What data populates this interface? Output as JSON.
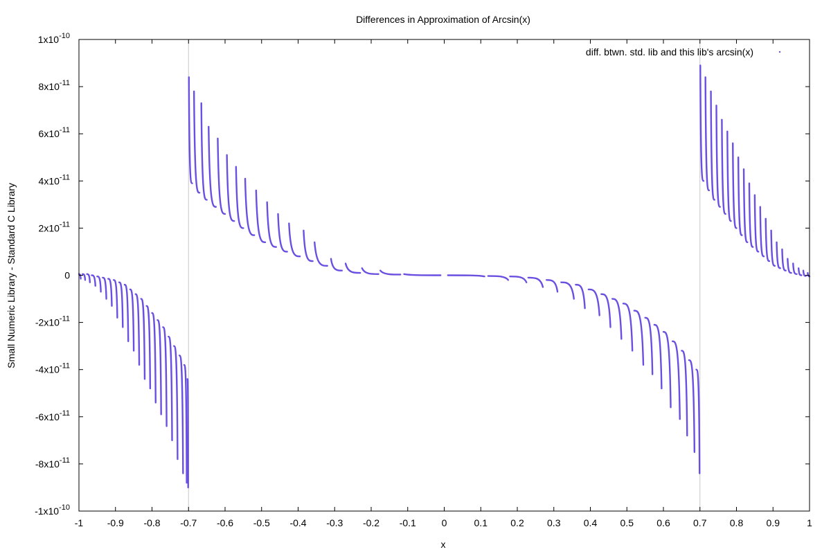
{
  "chart_data": {
    "type": "scatter",
    "title": "Differences in Approximation of Arcsin(x)",
    "xlabel": "x",
    "ylabel": "Small Numeric Library - Standard C Library",
    "xlim": [
      -1,
      1
    ],
    "ylim": [
      -1e-10,
      1e-10
    ],
    "x_ticks": [
      "-1",
      "-0.9",
      "-0.8",
      "-0.7",
      "-0.6",
      "-0.5",
      "-0.4",
      "-0.3",
      "-0.2",
      "-0.1",
      "0",
      "0.1",
      "0.2",
      "0.3",
      "0.4",
      "0.5",
      "0.6",
      "0.7",
      "0.8",
      "0.9",
      "1"
    ],
    "y_ticks": [
      {
        "value": 1e-10,
        "mant": "1",
        "exp": "-10"
      },
      {
        "value": 8e-11,
        "mant": "8",
        "exp": "-11"
      },
      {
        "value": 6e-11,
        "mant": "6",
        "exp": "-11"
      },
      {
        "value": 4e-11,
        "mant": "4",
        "exp": "-11"
      },
      {
        "value": 2e-11,
        "mant": "2",
        "exp": "-11"
      },
      {
        "value": 0,
        "mant": "0",
        "exp": ""
      },
      {
        "value": -2e-11,
        "mant": "-2",
        "exp": "-11"
      },
      {
        "value": -4e-11,
        "mant": "-4",
        "exp": "-11"
      },
      {
        "value": -6e-11,
        "mant": "-6",
        "exp": "-11"
      },
      {
        "value": -8e-11,
        "mant": "-8",
        "exp": "-11"
      },
      {
        "value": -1e-10,
        "mant": "-1",
        "exp": "-10"
      }
    ],
    "vertical_lines": [
      -0.7,
      0.7
    ],
    "grid": false,
    "legend_position": "top-right",
    "series": [
      {
        "name": "diff. btwn. std. lib and this lib's arcsin(x)",
        "color": "#6a4fe0",
        "segments": [
          {
            "x0": -1.0,
            "x1": -0.995,
            "y_top": 5e-13,
            "y_bottom": -1.5e-12
          },
          {
            "x0": -0.99,
            "x1": -0.983,
            "y_top": 5e-13,
            "y_bottom": -2e-12
          },
          {
            "x0": -0.978,
            "x1": -0.97,
            "y_top": 5e-13,
            "y_bottom": -3e-12
          },
          {
            "x0": -0.965,
            "x1": -0.955,
            "y_top": 0,
            "y_bottom": -4.5e-12
          },
          {
            "x0": -0.95,
            "x1": -0.94,
            "y_top": -5e-13,
            "y_bottom": -7e-12
          },
          {
            "x0": -0.935,
            "x1": -0.925,
            "y_top": -1e-12,
            "y_bottom": -1e-11
          },
          {
            "x0": -0.92,
            "x1": -0.91,
            "y_top": -1.5e-12,
            "y_bottom": -1.3e-11
          },
          {
            "x0": -0.905,
            "x1": -0.895,
            "y_top": -2e-12,
            "y_bottom": -1.8e-11
          },
          {
            "x0": -0.89,
            "x1": -0.88,
            "y_top": -3e-12,
            "y_bottom": -2.2e-11
          },
          {
            "x0": -0.875,
            "x1": -0.865,
            "y_top": -4e-12,
            "y_bottom": -2.8e-11
          },
          {
            "x0": -0.86,
            "x1": -0.85,
            "y_top": -6e-12,
            "y_bottom": -3.2e-11
          },
          {
            "x0": -0.845,
            "x1": -0.835,
            "y_top": -8e-12,
            "y_bottom": -3.8e-11
          },
          {
            "x0": -0.83,
            "x1": -0.82,
            "y_top": -1e-11,
            "y_bottom": -4.4e-11
          },
          {
            "x0": -0.815,
            "x1": -0.805,
            "y_top": -1.3e-11,
            "y_bottom": -4.8e-11
          },
          {
            "x0": -0.8,
            "x1": -0.79,
            "y_top": -1.6e-11,
            "y_bottom": -5.4e-11
          },
          {
            "x0": -0.785,
            "x1": -0.775,
            "y_top": -1.9e-11,
            "y_bottom": -5.9e-11
          },
          {
            "x0": -0.77,
            "x1": -0.76,
            "y_top": -2.2e-11,
            "y_bottom": -6.4e-11
          },
          {
            "x0": -0.755,
            "x1": -0.745,
            "y_top": -2.6e-11,
            "y_bottom": -7e-11
          },
          {
            "x0": -0.74,
            "x1": -0.73,
            "y_top": -3e-11,
            "y_bottom": -7.8e-11
          },
          {
            "x0": -0.725,
            "x1": -0.715,
            "y_top": -3.4e-11,
            "y_bottom": -8.4e-11
          },
          {
            "x0": -0.712,
            "x1": -0.705,
            "y_top": -3.8e-11,
            "y_bottom": -8.8e-11
          },
          {
            "x0": -0.703,
            "x1": -0.701,
            "y_top": -4.4e-11,
            "y_bottom": -9e-11
          },
          {
            "x0": -0.699,
            "x1": -0.69,
            "y_top": 8.4e-11,
            "y_bottom": 3.9e-11
          },
          {
            "x0": -0.685,
            "x1": -0.67,
            "y_top": 7.8e-11,
            "y_bottom": 3.5e-11
          },
          {
            "x0": -0.665,
            "x1": -0.65,
            "y_top": 7.3e-11,
            "y_bottom": 3.2e-11
          },
          {
            "x0": -0.645,
            "x1": -0.625,
            "y_top": 6.3e-11,
            "y_bottom": 2.9e-11
          },
          {
            "x0": -0.62,
            "x1": -0.6,
            "y_top": 5.8e-11,
            "y_bottom": 2.6e-11
          },
          {
            "x0": -0.595,
            "x1": -0.575,
            "y_top": 5.1e-11,
            "y_bottom": 2.3e-11
          },
          {
            "x0": -0.57,
            "x1": -0.55,
            "y_top": 4.6e-11,
            "y_bottom": 2e-11
          },
          {
            "x0": -0.545,
            "x1": -0.52,
            "y_top": 4.1e-11,
            "y_bottom": 1.7e-11
          },
          {
            "x0": -0.515,
            "x1": -0.49,
            "y_top": 3.6e-11,
            "y_bottom": 1.4e-11
          },
          {
            "x0": -0.485,
            "x1": -0.46,
            "y_top": 3.1e-11,
            "y_bottom": 1.2e-11
          },
          {
            "x0": -0.455,
            "x1": -0.43,
            "y_top": 2.6e-11,
            "y_bottom": 1e-11
          },
          {
            "x0": -0.425,
            "x1": -0.395,
            "y_top": 2.2e-11,
            "y_bottom": 8e-12
          },
          {
            "x0": -0.385,
            "x1": -0.36,
            "y_top": 1.9e-11,
            "y_bottom": 6e-12
          },
          {
            "x0": -0.355,
            "x1": -0.32,
            "y_top": 1.4e-11,
            "y_bottom": 4e-12
          },
          {
            "x0": -0.31,
            "x1": -0.28,
            "y_top": 7e-12,
            "y_bottom": 2e-12
          },
          {
            "x0": -0.27,
            "x1": -0.23,
            "y_top": 5e-12,
            "y_bottom": 1e-12
          },
          {
            "x0": -0.225,
            "x1": -0.18,
            "y_top": 3e-12,
            "y_bottom": 5e-13
          },
          {
            "x0": -0.175,
            "x1": -0.12,
            "y_top": 2e-12,
            "y_bottom": 3e-13
          },
          {
            "x0": -0.11,
            "x1": -0.01,
            "y_top": 5e-13,
            "y_bottom": 0
          },
          {
            "x0": 0.01,
            "x1": 0.11,
            "y_top": 0,
            "y_bottom": -5e-13
          },
          {
            "x0": 0.12,
            "x1": 0.175,
            "y_top": -3e-13,
            "y_bottom": -2e-12
          },
          {
            "x0": 0.18,
            "x1": 0.225,
            "y_top": -5e-13,
            "y_bottom": -3e-12
          },
          {
            "x0": 0.23,
            "x1": 0.27,
            "y_top": -1e-12,
            "y_bottom": -5e-12
          },
          {
            "x0": 0.28,
            "x1": 0.31,
            "y_top": -2e-12,
            "y_bottom": -7e-12
          },
          {
            "x0": 0.32,
            "x1": 0.355,
            "y_top": -3e-12,
            "y_bottom": -1e-11
          },
          {
            "x0": 0.36,
            "x1": 0.385,
            "y_top": -4e-12,
            "y_bottom": -1.4e-11
          },
          {
            "x0": 0.395,
            "x1": 0.425,
            "y_top": -6e-12,
            "y_bottom": -1.7e-11
          },
          {
            "x0": 0.43,
            "x1": 0.455,
            "y_top": -8e-12,
            "y_bottom": -2.2e-11
          },
          {
            "x0": 0.46,
            "x1": 0.485,
            "y_top": -1e-11,
            "y_bottom": -2.7e-11
          },
          {
            "x0": 0.49,
            "x1": 0.515,
            "y_top": -1.2e-11,
            "y_bottom": -3.2e-11
          },
          {
            "x0": 0.52,
            "x1": 0.545,
            "y_top": -1.5e-11,
            "y_bottom": -3.8e-11
          },
          {
            "x0": 0.55,
            "x1": 0.57,
            "y_top": -1.8e-11,
            "y_bottom": -4.2e-11
          },
          {
            "x0": 0.575,
            "x1": 0.595,
            "y_top": -2.1e-11,
            "y_bottom": -4.8e-11
          },
          {
            "x0": 0.6,
            "x1": 0.62,
            "y_top": -2.4e-11,
            "y_bottom": -5.6e-11
          },
          {
            "x0": 0.625,
            "x1": 0.645,
            "y_top": -2.8e-11,
            "y_bottom": -6.1e-11
          },
          {
            "x0": 0.65,
            "x1": 0.665,
            "y_top": -3.2e-11,
            "y_bottom": -6.8e-11
          },
          {
            "x0": 0.67,
            "x1": 0.685,
            "y_top": -3.6e-11,
            "y_bottom": -7.5e-11
          },
          {
            "x0": 0.69,
            "x1": 0.699,
            "y_top": -4e-11,
            "y_bottom": -8.4e-11
          },
          {
            "x0": 0.701,
            "x1": 0.71,
            "y_top": 8.9e-11,
            "y_bottom": 4e-11
          },
          {
            "x0": 0.715,
            "x1": 0.725,
            "y_top": 8.4e-11,
            "y_bottom": 3.6e-11
          },
          {
            "x0": 0.73,
            "x1": 0.74,
            "y_top": 7.8e-11,
            "y_bottom": 3.2e-11
          },
          {
            "x0": 0.745,
            "x1": 0.755,
            "y_top": 7.2e-11,
            "y_bottom": 2.9e-11
          },
          {
            "x0": 0.76,
            "x1": 0.77,
            "y_top": 6.6e-11,
            "y_bottom": 2.6e-11
          },
          {
            "x0": 0.775,
            "x1": 0.785,
            "y_top": 6.1e-11,
            "y_bottom": 2.3e-11
          },
          {
            "x0": 0.79,
            "x1": 0.8,
            "y_top": 5.6e-11,
            "y_bottom": 2e-11
          },
          {
            "x0": 0.805,
            "x1": 0.815,
            "y_top": 5e-11,
            "y_bottom": 1.7e-11
          },
          {
            "x0": 0.82,
            "x1": 0.83,
            "y_top": 4.5e-11,
            "y_bottom": 1.4e-11
          },
          {
            "x0": 0.835,
            "x1": 0.845,
            "y_top": 3.9e-11,
            "y_bottom": 1.2e-11
          },
          {
            "x0": 0.85,
            "x1": 0.86,
            "y_top": 3.4e-11,
            "y_bottom": 1e-11
          },
          {
            "x0": 0.865,
            "x1": 0.875,
            "y_top": 2.9e-11,
            "y_bottom": 8e-12
          },
          {
            "x0": 0.88,
            "x1": 0.89,
            "y_top": 2.4e-11,
            "y_bottom": 6e-12
          },
          {
            "x0": 0.895,
            "x1": 0.905,
            "y_top": 1.9e-11,
            "y_bottom": 4e-12
          },
          {
            "x0": 0.91,
            "x1": 0.92,
            "y_top": 1.4e-11,
            "y_bottom": 3e-12
          },
          {
            "x0": 0.925,
            "x1": 0.935,
            "y_top": 1.1e-11,
            "y_bottom": 2e-12
          },
          {
            "x0": 0.94,
            "x1": 0.95,
            "y_top": 7e-12,
            "y_bottom": 1e-12
          },
          {
            "x0": 0.955,
            "x1": 0.965,
            "y_top": 5e-12,
            "y_bottom": 5e-13
          },
          {
            "x0": 0.97,
            "x1": 0.978,
            "y_top": 3e-12,
            "y_bottom": 0
          },
          {
            "x0": 0.983,
            "x1": 0.99,
            "y_top": 2e-12,
            "y_bottom": -3e-13
          },
          {
            "x0": 0.995,
            "x1": 1.0,
            "y_top": 1e-12,
            "y_bottom": -5e-13
          }
        ]
      }
    ]
  }
}
